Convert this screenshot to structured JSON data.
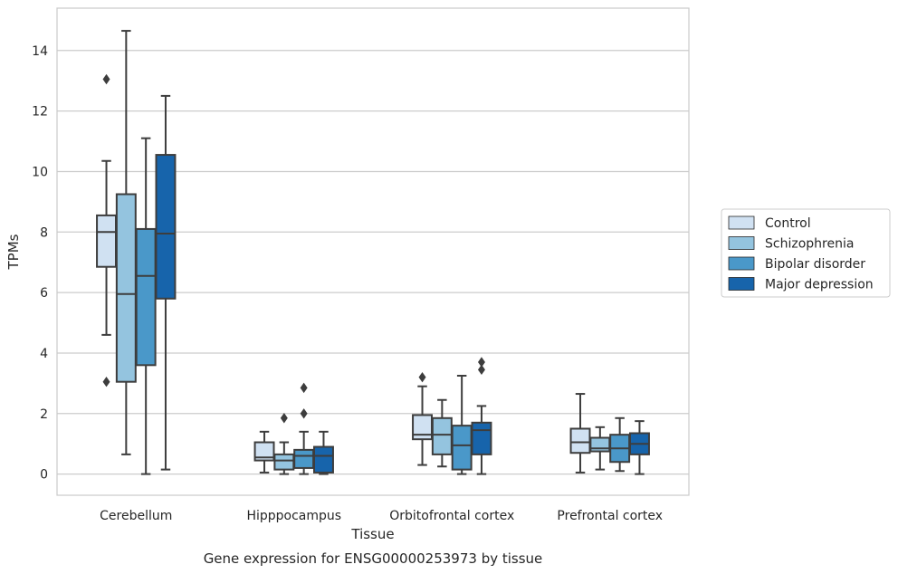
{
  "chart_data": {
    "type": "box",
    "title": "",
    "caption": "Gene expression for ENSG00000253973 by tissue",
    "xlabel": "Tissue",
    "ylabel": "TPMs",
    "ylim": [
      -0.7,
      15.4
    ],
    "yticks": [
      0,
      2,
      4,
      6,
      8,
      10,
      12,
      14
    ],
    "grid": "horizontal",
    "legend_position": "right",
    "categories": [
      "Cerebellum",
      "Hipppocampus",
      "Orbitofrontal cortex",
      "Prefrontal cortex"
    ],
    "series": [
      {
        "name": "Control",
        "color": "#d0e1f2",
        "boxes": [
          {
            "whislo": 4.6,
            "q1": 6.85,
            "med": 8.0,
            "q3": 8.55,
            "whishi": 10.35,
            "fliers": [
              13.05,
              3.05
            ]
          },
          {
            "whislo": 0.05,
            "q1": 0.45,
            "med": 0.55,
            "q3": 1.05,
            "whishi": 1.4,
            "fliers": []
          },
          {
            "whislo": 0.3,
            "q1": 1.15,
            "med": 1.3,
            "q3": 1.95,
            "whishi": 2.9,
            "fliers": [
              3.2
            ]
          },
          {
            "whislo": 0.05,
            "q1": 0.7,
            "med": 1.05,
            "q3": 1.5,
            "whishi": 2.65,
            "fliers": []
          }
        ]
      },
      {
        "name": "Schizophrenia",
        "color": "#94c4df",
        "boxes": [
          {
            "whislo": 0.65,
            "q1": 3.05,
            "med": 5.95,
            "q3": 9.25,
            "whishi": 14.65,
            "fliers": []
          },
          {
            "whislo": 0.0,
            "q1": 0.15,
            "med": 0.45,
            "q3": 0.65,
            "whishi": 1.05,
            "fliers": [
              1.85
            ]
          },
          {
            "whislo": 0.25,
            "q1": 0.65,
            "med": 1.3,
            "q3": 1.85,
            "whishi": 2.45,
            "fliers": []
          },
          {
            "whislo": 0.15,
            "q1": 0.75,
            "med": 0.85,
            "q3": 1.2,
            "whishi": 1.55,
            "fliers": []
          }
        ]
      },
      {
        "name": "Bipolar disorder",
        "color": "#4a98c9",
        "boxes": [
          {
            "whislo": 0.0,
            "q1": 3.6,
            "med": 6.55,
            "q3": 8.1,
            "whishi": 11.1,
            "fliers": []
          },
          {
            "whislo": 0.0,
            "q1": 0.2,
            "med": 0.6,
            "q3": 0.8,
            "whishi": 1.4,
            "fliers": [
              2.85,
              2.0
            ]
          },
          {
            "whislo": 0.0,
            "q1": 0.15,
            "med": 0.95,
            "q3": 1.6,
            "whishi": 3.25,
            "fliers": []
          },
          {
            "whislo": 0.1,
            "q1": 0.4,
            "med": 0.85,
            "q3": 1.3,
            "whishi": 1.85,
            "fliers": []
          }
        ]
      },
      {
        "name": "Major depression",
        "color": "#1764ab",
        "boxes": [
          {
            "whislo": 0.15,
            "q1": 5.8,
            "med": 7.95,
            "q3": 10.55,
            "whishi": 12.5,
            "fliers": []
          },
          {
            "whislo": 0.0,
            "q1": 0.05,
            "med": 0.6,
            "q3": 0.9,
            "whishi": 1.4,
            "fliers": []
          },
          {
            "whislo": 0.0,
            "q1": 0.65,
            "med": 1.45,
            "q3": 1.7,
            "whishi": 2.25,
            "fliers": [
              3.7,
              3.45
            ]
          },
          {
            "whislo": 0.0,
            "q1": 0.65,
            "med": 1.0,
            "q3": 1.35,
            "whishi": 1.75,
            "fliers": []
          }
        ]
      }
    ]
  }
}
